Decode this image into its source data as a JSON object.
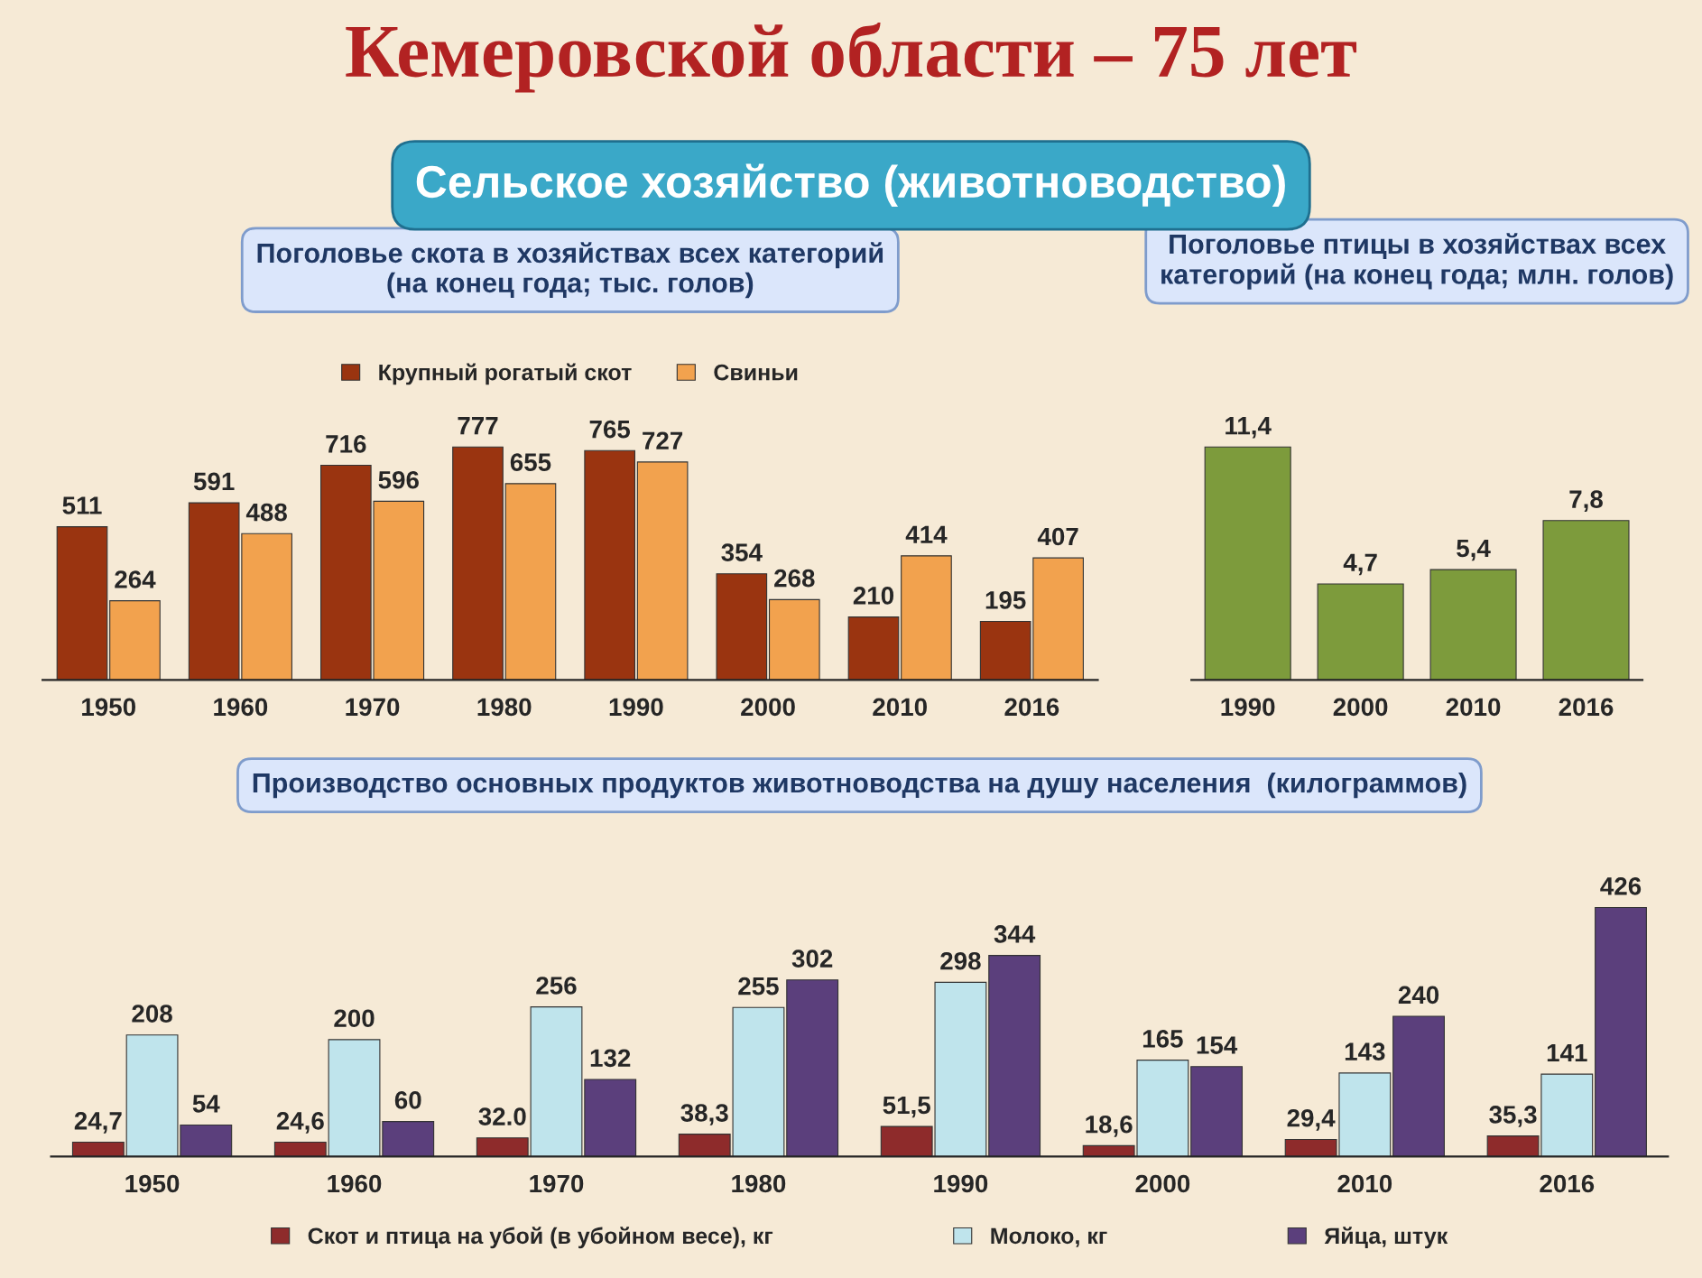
{
  "chart_data": [
    {
      "type": "bar",
      "title": "Поголовье скота в хозяйствах всех категорий",
      "subtitle": "(на конец года; тыс. голов)",
      "annotations": [
        "Кемеровской области – 75 лет",
        "Сельское хозяйство (животноводство)"
      ],
      "categories": [
        "1950",
        "1960",
        "1970",
        "1980",
        "1990",
        "2000",
        "2010",
        "2016"
      ],
      "series": [
        {
          "name": "Крупный рогатый скот",
          "color": "#9a3410",
          "values": [
            511,
            591,
            716,
            777,
            765,
            354,
            210,
            195
          ]
        },
        {
          "name": "Свиньи",
          "color": "#f2a24e",
          "values": [
            264,
            488,
            596,
            655,
            727,
            268,
            414,
            407
          ]
        }
      ],
      "data_labels": true,
      "legend": "top",
      "grid": false
    },
    {
      "type": "bar",
      "title": "Поголовье птицы в хозяйствах всех категорий (на конец года; млн. голов)",
      "categories": [
        "1990",
        "2000",
        "2010",
        "2016"
      ],
      "series": [
        {
          "color": "#7d9b3c",
          "values": [
            11.4,
            4.7,
            5.4,
            7.8
          ],
          "value_labels": [
            "11,4",
            "4,7",
            "5,4",
            "7,8"
          ]
        }
      ],
      "grid": false
    },
    {
      "type": "bar",
      "title": "Производство основных продуктов животноводства на душу населения  (килограммов)",
      "categories": [
        "1950",
        "1960",
        "1970",
        "1980",
        "1990",
        "2000",
        "2010",
        "2016"
      ],
      "series": [
        {
          "name": "Скот и птица на убой (в убойном весе), кг",
          "color": "#8e2b2b",
          "values": [
            24.7,
            24.6,
            32.0,
            38.3,
            51.5,
            18.6,
            29.4,
            35.3
          ],
          "value_labels": [
            "24,7",
            "24,6",
            "32.0",
            "38,3",
            "51,5",
            "18,6",
            "29,4",
            "35,3"
          ]
        },
        {
          "name": "Молоко, кг",
          "color": "#bfe4ec",
          "values": [
            208,
            200,
            256,
            255,
            298,
            165,
            143,
            141
          ]
        },
        {
          "name": "Яйца, штук",
          "color": "#5b3f7c",
          "values": [
            54,
            60,
            132,
            302,
            344,
            154,
            240,
            426
          ]
        }
      ],
      "data_labels": true,
      "legend": "bottom",
      "grid": false
    }
  ]
}
